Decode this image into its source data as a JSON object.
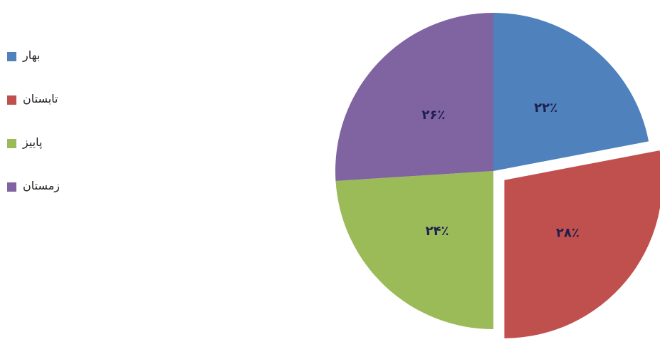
{
  "chart_data": {
    "type": "pie",
    "categories": [
      "بهار",
      "تابستان",
      "پاییز",
      "زمستان"
    ],
    "values": [
      22,
      28,
      24,
      26
    ],
    "value_labels": [
      "۲۲٪",
      "۲۸٪",
      "۲۴٪",
      "۲۶٪"
    ],
    "colors": [
      "#4f81bd",
      "#c0504d",
      "#9bbb59",
      "#8064a2"
    ],
    "exploded": [
      false,
      true,
      false,
      false
    ],
    "legend_position": "left",
    "title": ""
  }
}
